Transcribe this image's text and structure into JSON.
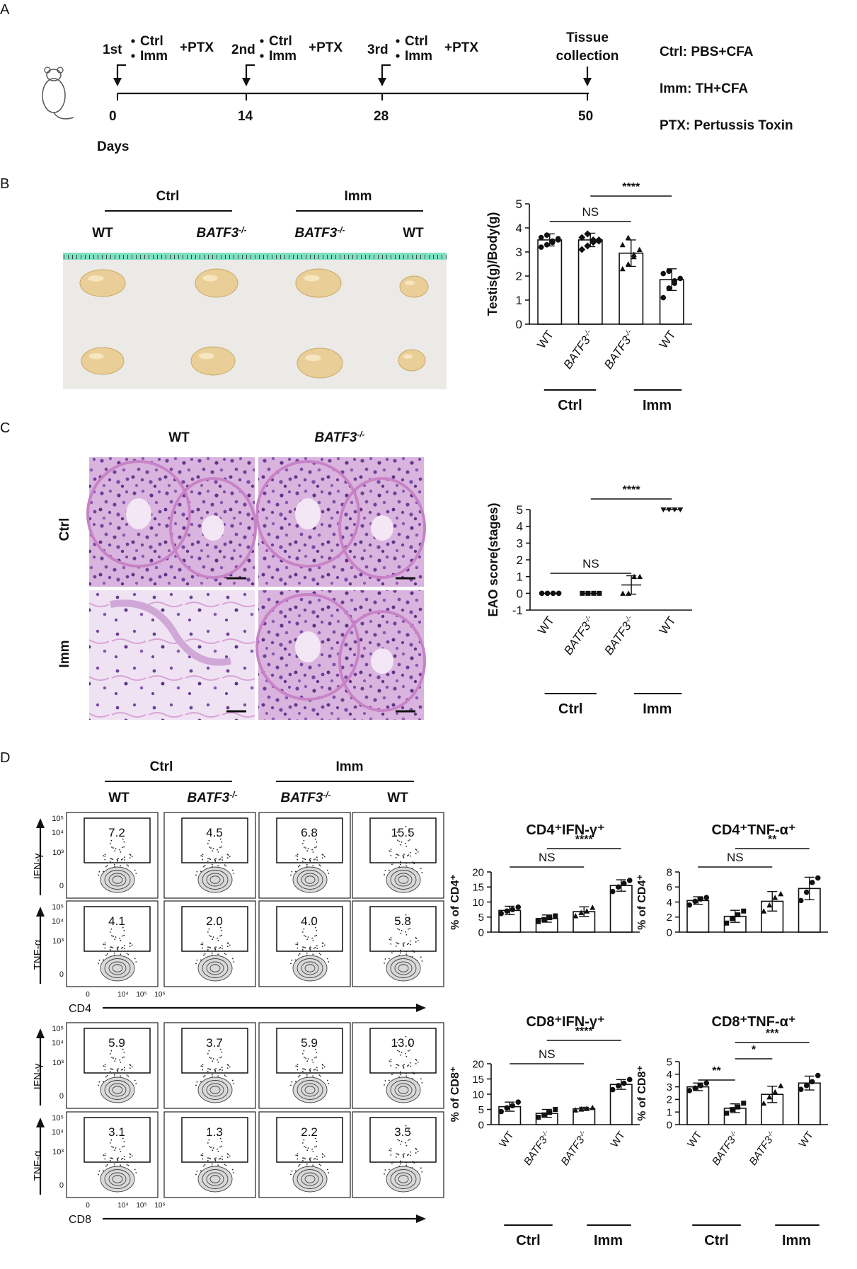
{
  "panels": {
    "A": "A",
    "B": "B",
    "C": "C",
    "D": "D"
  },
  "schedule": {
    "immunizations": [
      {
        "label": "1st",
        "day": "0"
      },
      {
        "label": "2nd",
        "day": "14"
      },
      {
        "label": "3rd",
        "day": "28"
      }
    ],
    "ctrl": "Ctrl",
    "imm": "Imm",
    "ptx": "+PTX",
    "collection_line1": "Tissue",
    "collection_line2": "collection",
    "collection_day": "50",
    "axis_label": "Days",
    "legend": [
      "Ctrl: PBS+CFA",
      "Imm: TH+CFA",
      "PTX:  Pertussis  Toxin"
    ]
  },
  "groups": {
    "ctrl": "Ctrl",
    "imm": "Imm",
    "wt": "WT",
    "ko": "BATF3",
    "ko_sup": "-/-"
  },
  "sig": {
    "ns": "NS",
    "four": "****",
    "three": "***",
    "two": "**",
    "one": "*"
  },
  "flow": {
    "gates": {
      "cd4_ifng": [
        "7.2",
        "4.5",
        "6.8",
        "15.5"
      ],
      "cd4_tnfa": [
        "4.1",
        "2.0",
        "4.0",
        "5.8"
      ],
      "cd8_ifng": [
        "5.9",
        "3.7",
        "5.9",
        "13.0"
      ],
      "cd8_tnfa": [
        "3.1",
        "1.3",
        "2.2",
        "3.5"
      ]
    },
    "ylabel_ifng": "IFN-γ",
    "ylabel_tnfa": "TNF-α",
    "xlabel_cd4": "CD4",
    "xlabel_cd8": "CD8",
    "yticks": [
      "10⁵",
      "10⁴",
      "10³",
      "0"
    ],
    "xticks": [
      "0",
      "10⁴",
      "10⁵",
      "10⁶"
    ]
  },
  "chart_data": [
    {
      "type": "bar",
      "panel": "B",
      "ylabel": "Testis(g)/Body(g)",
      "ylim": [
        0,
        5
      ],
      "yticks": [
        0,
        1,
        2,
        3,
        4,
        5
      ],
      "categories": [
        "WT",
        "BATF3-/-",
        "BATF3-/-",
        "WT"
      ],
      "values": [
        3.5,
        3.5,
        2.95,
        1.85
      ],
      "errors": [
        0.25,
        0.28,
        0.55,
        0.45
      ],
      "points": [
        [
          3.2,
          3.3,
          3.4,
          3.5,
          3.6,
          3.7,
          3.45,
          3.55
        ],
        [
          3.1,
          3.25,
          3.4,
          3.5,
          3.6,
          3.75,
          3.5,
          3.45
        ],
        [
          2.3,
          2.5,
          2.8,
          3.1,
          3.3,
          3.6,
          2.9
        ],
        [
          1.1,
          1.5,
          1.7,
          1.9,
          2.1,
          2.2,
          1.8
        ]
      ],
      "sig": [
        {
          "a": 0,
          "b": 2,
          "label": "NS"
        },
        {
          "a": 1,
          "b": 3,
          "label": "****"
        }
      ],
      "marker": "filled"
    },
    {
      "type": "scatter",
      "panel": "C",
      "ylabel": "EAO score(stages)",
      "ylim": [
        -1,
        5
      ],
      "yticks": [
        -1,
        0,
        1,
        2,
        3,
        4,
        5
      ],
      "categories": [
        "WT",
        "BATF3-/-",
        "BATF3-/-",
        "WT"
      ],
      "values": [
        0,
        0,
        0.5,
        5
      ],
      "errors": [
        0,
        0,
        0.55,
        0
      ],
      "points": [
        [
          0,
          0,
          0,
          0
        ],
        [
          0,
          0,
          0,
          0
        ],
        [
          0,
          0,
          1,
          1
        ],
        [
          5,
          5,
          5,
          5
        ]
      ],
      "sig": [
        {
          "a": 0,
          "b": 2,
          "label": "NS"
        },
        {
          "a": 1,
          "b": 3,
          "label": "****"
        }
      ]
    },
    {
      "type": "bar",
      "panel": "D",
      "title": "CD4⁺IFN-γ⁺",
      "ylabel": "% of CD4⁺",
      "ylim": [
        0,
        20
      ],
      "yticks": [
        0,
        5,
        10,
        15,
        20
      ],
      "categories": [
        "WT",
        "BATF3-/-",
        "BATF3-/-",
        "WT"
      ],
      "values": [
        7.2,
        4.5,
        6.8,
        15.5
      ],
      "errors": [
        1.4,
        1.2,
        1.6,
        1.9
      ],
      "points": [
        [
          6.2,
          7.0,
          7.5,
          8.3
        ],
        [
          3.5,
          4.2,
          4.8,
          5.4
        ],
        [
          5.4,
          6.5,
          7.0,
          8.2
        ],
        [
          13.5,
          15.0,
          16.2,
          17.2
        ]
      ],
      "sig": [
        {
          "a": 0,
          "b": 2,
          "label": "NS"
        },
        {
          "a": 1,
          "b": 3,
          "label": "****"
        }
      ]
    },
    {
      "type": "bar",
      "panel": "D",
      "title": "CD4⁺TNF-α⁺",
      "ylabel": "% of CD4⁺",
      "ylim": [
        0,
        8
      ],
      "yticks": [
        0,
        2,
        4,
        6,
        8
      ],
      "categories": [
        "WT",
        "BATF3-/-",
        "BATF3-/-",
        "WT"
      ],
      "values": [
        4.2,
        2.1,
        4.1,
        5.8
      ],
      "errors": [
        0.5,
        0.8,
        1.3,
        1.5
      ],
      "points": [
        [
          3.6,
          4.1,
          4.4,
          4.6
        ],
        [
          1.2,
          1.8,
          2.3,
          2.8
        ],
        [
          2.8,
          3.6,
          4.6,
          5.1
        ],
        [
          4.2,
          5.3,
          6.6,
          7.2
        ]
      ],
      "sig": [
        {
          "a": 0,
          "b": 2,
          "label": "NS"
        },
        {
          "a": 1,
          "b": 3,
          "label": "**"
        }
      ]
    },
    {
      "type": "bar",
      "panel": "D",
      "title": "CD8⁺IFN-γ⁺",
      "ylabel": "% of CD8⁺",
      "ylim": [
        0,
        20
      ],
      "yticks": [
        0,
        5,
        10,
        15,
        20
      ],
      "categories": [
        "WT",
        "BATF3-/-",
        "BATF3-/-",
        "WT"
      ],
      "values": [
        5.9,
        3.7,
        5.2,
        13.2
      ],
      "errors": [
        1.5,
        1.3,
        0.5,
        1.6
      ],
      "points": [
        [
          4.3,
          5.5,
          6.2,
          7.4
        ],
        [
          2.4,
          3.2,
          4.0,
          5.0
        ],
        [
          4.8,
          5.1,
          5.3,
          5.6
        ],
        [
          11.5,
          12.8,
          13.6,
          14.8
        ]
      ],
      "sig": [
        {
          "a": 0,
          "b": 2,
          "label": "NS"
        },
        {
          "a": 1,
          "b": 3,
          "label": "****"
        }
      ]
    },
    {
      "type": "bar",
      "panel": "D",
      "title": "CD8⁺TNF-α⁺",
      "ylabel": "% of CD8⁺",
      "ylim": [
        0,
        5
      ],
      "yticks": [
        0,
        1,
        2,
        3,
        4,
        5
      ],
      "categories": [
        "WT",
        "BATF3-/-",
        "BATF3-/-",
        "WT"
      ],
      "values": [
        3.0,
        1.3,
        2.4,
        3.3
      ],
      "errors": [
        0.3,
        0.35,
        0.65,
        0.55
      ],
      "points": [
        [
          2.7,
          2.9,
          3.1,
          3.3
        ],
        [
          0.9,
          1.2,
          1.4,
          1.7
        ],
        [
          1.7,
          2.2,
          2.6,
          3.1
        ],
        [
          2.8,
          3.1,
          3.4,
          3.9
        ]
      ],
      "sig": [
        {
          "a": 0,
          "b": 1,
          "label": "**"
        },
        {
          "a": 1,
          "b": 2,
          "label": "*"
        },
        {
          "a": 1,
          "b": 3,
          "label": "***"
        }
      ]
    }
  ]
}
